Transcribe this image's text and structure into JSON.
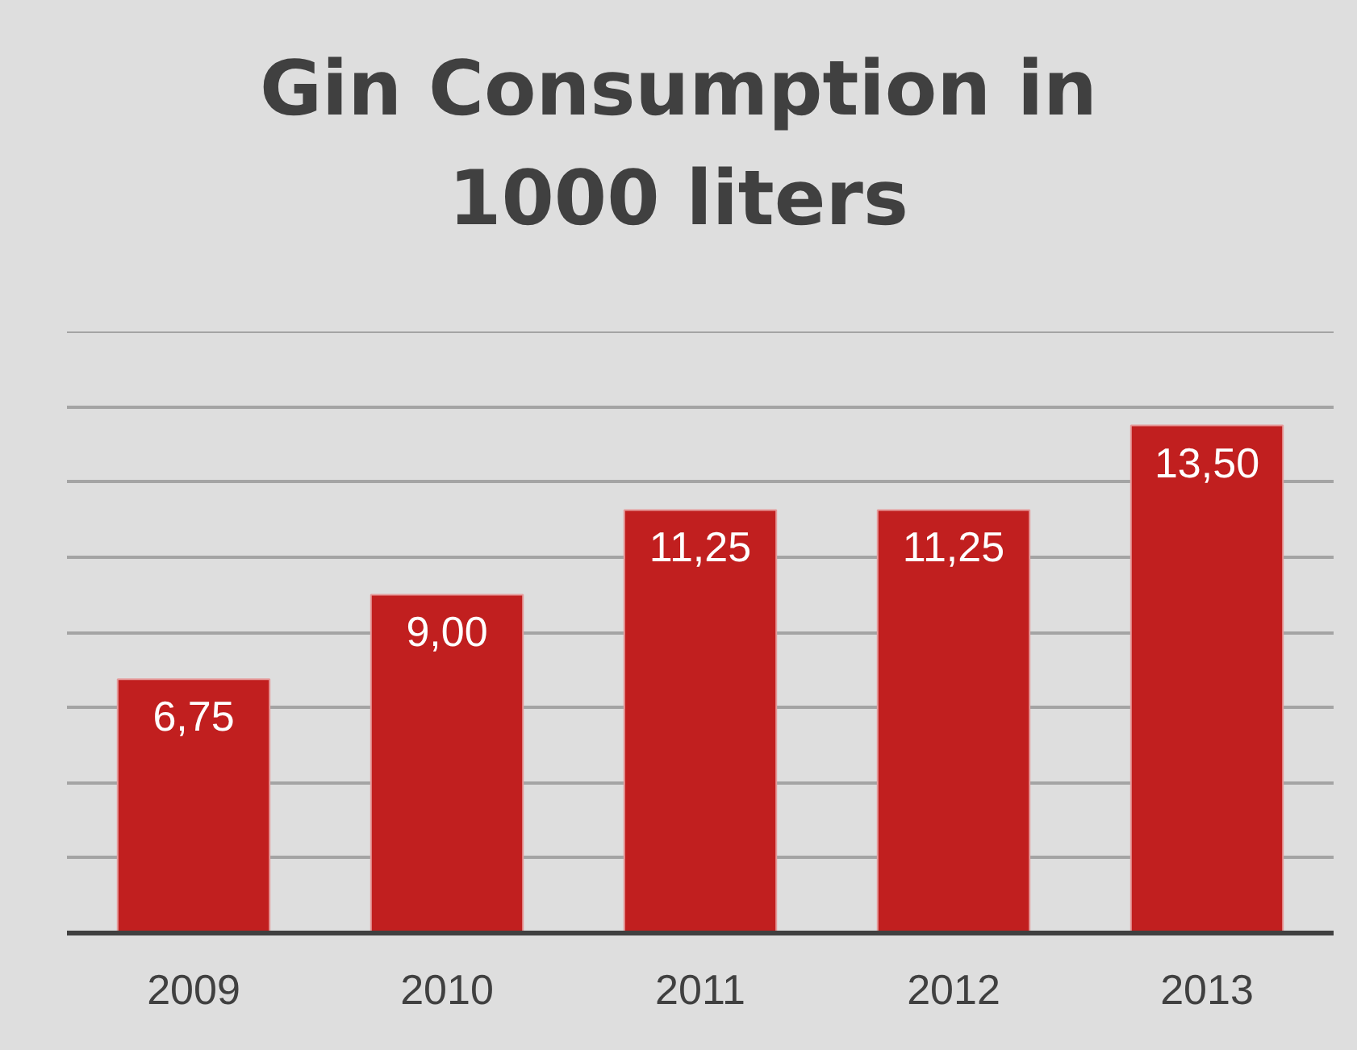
{
  "chart_data": {
    "type": "bar",
    "title": "Gin Consumption in 1000 liters",
    "categories": [
      "2009",
      "2010",
      "2011",
      "2012",
      "2013"
    ],
    "values": [
      6.75,
      9.0,
      11.25,
      11.25,
      13.5
    ],
    "value_labels": [
      "6,75",
      "9,00",
      "11,25",
      "11,25",
      "13,50"
    ],
    "color": "#c11f1f",
    "ylim": [
      0,
      16
    ],
    "yticks": [
      {
        "value": 2,
        "label": null
      },
      {
        "value": 4,
        "label": null
      },
      {
        "value": 6,
        "label": null
      },
      {
        "value": 8,
        "label": null
      },
      {
        "value": 10,
        "label": null
      },
      {
        "value": 12,
        "label": null
      },
      {
        "value": 14,
        "label": null
      },
      {
        "value": 16,
        "label": null
      }
    ],
    "grid": "y",
    "tick_labels": "x"
  }
}
